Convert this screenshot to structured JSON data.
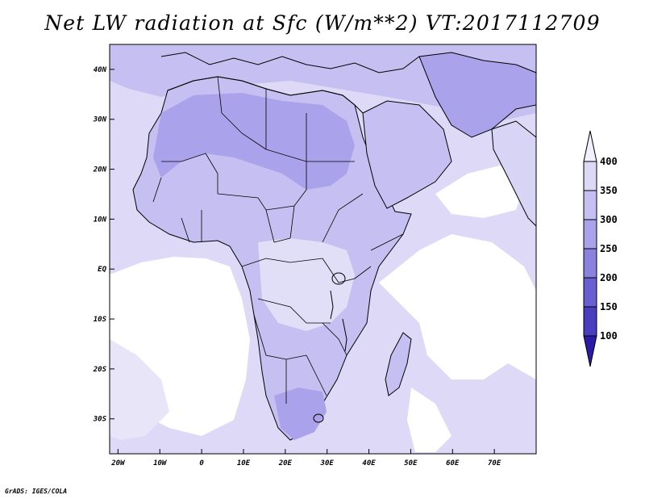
{
  "title": "Net LW radiation at Sfc (W/m**2) VT:2017112709",
  "credit": "GrADS: IGES/COLA",
  "map": {
    "lon_range": [
      -22,
      80
    ],
    "lat_range": [
      -37,
      45
    ],
    "lon_ticks": [
      {
        "value": -20,
        "label": "20W"
      },
      {
        "value": -10,
        "label": "10W"
      },
      {
        "value": 0,
        "label": "0"
      },
      {
        "value": 10,
        "label": "10E"
      },
      {
        "value": 20,
        "label": "20E"
      },
      {
        "value": 30,
        "label": "30E"
      },
      {
        "value": 40,
        "label": "40E"
      },
      {
        "value": 50,
        "label": "50E"
      },
      {
        "value": 60,
        "label": "60E"
      },
      {
        "value": 70,
        "label": "70E"
      }
    ],
    "lat_ticks": [
      {
        "value": 40,
        "label": "40N"
      },
      {
        "value": 30,
        "label": "30N"
      },
      {
        "value": 20,
        "label": "20N"
      },
      {
        "value": 10,
        "label": "10N"
      },
      {
        "value": 0,
        "label": "EQ"
      },
      {
        "value": -10,
        "label": "10S"
      },
      {
        "value": -20,
        "label": "20S"
      },
      {
        "value": -30,
        "label": "30S"
      }
    ]
  },
  "colorbar": {
    "levels": [
      "400",
      "350",
      "300",
      "250",
      "200",
      "150",
      "100"
    ],
    "colors": [
      "#f2f0fc",
      "#dcd9f6",
      "#c5c0f1",
      "#aaa2ea",
      "#8b82df",
      "#6a5fd2",
      "#4a3ec0",
      "#2a1aa6"
    ]
  },
  "colors": {
    "bg_field": "#ddd9f6",
    "ocean_light": "#e8e5f9",
    "ocean_white": "#ffffff",
    "land_mid": "#c5c0f1",
    "land_dark": "#aaa2ea",
    "border": "#000000"
  }
}
